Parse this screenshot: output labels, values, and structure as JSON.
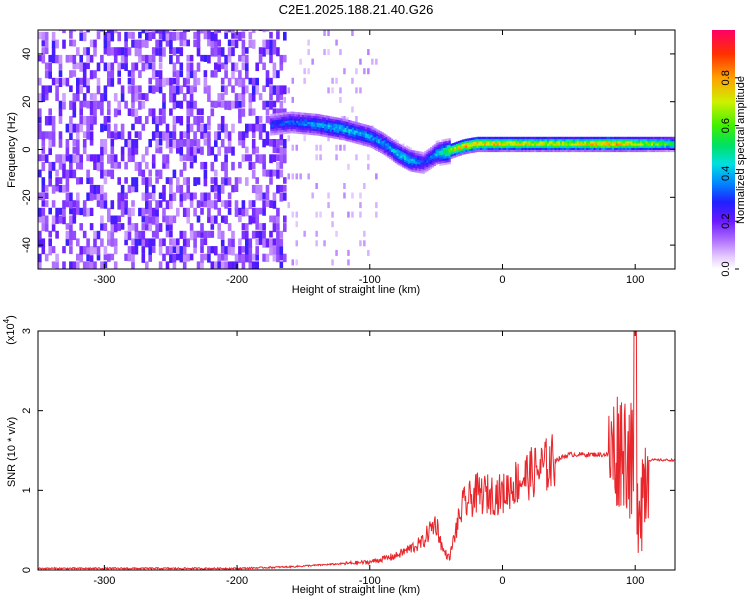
{
  "title": "C2E1.2025.188.21.40.G26",
  "chart_data": [
    {
      "type": "heatmap",
      "xlabel": "Height of straight line (km)",
      "ylabel": "Frequency (Hz)",
      "xlim": [
        -350,
        130
      ],
      "ylim": [
        -50,
        50
      ],
      "xticks": [
        -300,
        -200,
        -100,
        0,
        100
      ],
      "yticks": [
        -40,
        -20,
        0,
        20,
        40
      ],
      "colorbar": {
        "label": "Normalized spectral amplitude",
        "range": [
          0.0,
          1.0
        ],
        "ticks": [
          0.0,
          0.2,
          0.4,
          0.6,
          0.8
        ]
      },
      "ridge": {
        "x": [
          -175,
          -160,
          -140,
          -120,
          -100,
          -90,
          -80,
          -70,
          -60,
          -50,
          -40,
          -30,
          -20,
          0,
          20,
          50,
          80,
          100,
          130
        ],
        "freq_hz": [
          10,
          11,
          10,
          8,
          5,
          2,
          -2,
          -5,
          -6,
          -2,
          -1,
          1,
          2,
          2,
          2,
          2,
          2,
          2,
          2
        ],
        "amplitude": [
          0.3,
          0.35,
          0.4,
          0.45,
          0.4,
          0.4,
          0.45,
          0.45,
          0.3,
          0.45,
          0.7,
          0.85,
          0.85,
          0.8,
          0.75,
          0.75,
          0.85,
          0.75,
          0.55
        ]
      }
    },
    {
      "type": "line",
      "xlabel": "Height of straight line (km)",
      "ylabel": "SNR (10 * v/v)",
      "yscale_label": "(x10",
      "yscale_exp": "4",
      "xlim": [
        -350,
        130
      ],
      "ylim": [
        0,
        3
      ],
      "xticks": [
        -300,
        -200,
        -100,
        0,
        100
      ],
      "yticks": [
        0,
        1,
        2,
        3
      ],
      "color": "#e8262b",
      "series": [
        {
          "x": [
            -350,
            -200,
            -160,
            -120,
            -100,
            -80,
            -60,
            -55,
            -50,
            -45,
            -40,
            -35,
            -30,
            -20,
            -10,
            0,
            10,
            20,
            30,
            40,
            50,
            60,
            70,
            80,
            85,
            90,
            95,
            100,
            105,
            110,
            120,
            130
          ],
          "values": [
            0.02,
            0.02,
            0.04,
            0.08,
            0.1,
            0.18,
            0.35,
            0.5,
            0.6,
            0.25,
            0.15,
            0.5,
            0.8,
            0.95,
            0.95,
            0.95,
            1.1,
            1.2,
            1.28,
            1.38,
            1.45,
            1.45,
            1.45,
            1.45,
            1.5,
            1.6,
            1.5,
            1.0,
            1.0,
            1.38,
            1.38,
            1.38
          ]
        }
      ]
    }
  ]
}
